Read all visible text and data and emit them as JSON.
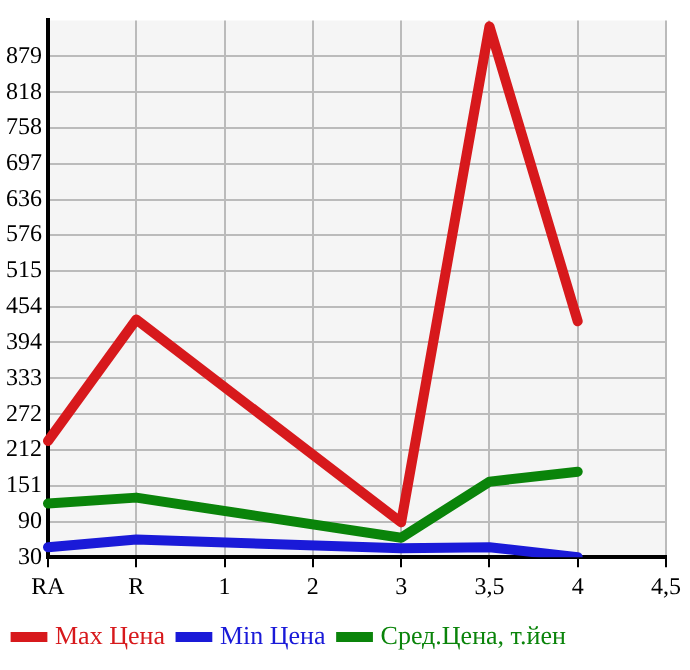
{
  "chart_data": {
    "type": "line",
    "categories": [
      "RA",
      "R",
      "1",
      "2",
      "3",
      "3,5",
      "4",
      "4,5"
    ],
    "series": [
      {
        "name": "Max Цена",
        "color": "#d7191c",
        "values": [
          227,
          433,
          null,
          null,
          89,
          930,
          430,
          null
        ]
      },
      {
        "name": "Min Цена",
        "color": "#1a1ad8",
        "values": [
          47,
          60,
          null,
          null,
          45,
          47,
          30,
          null
        ]
      },
      {
        "name": "Сред.Цена, т.йен",
        "color": "#0a840a",
        "values": [
          121,
          131,
          null,
          null,
          63,
          158,
          175,
          null
        ]
      }
    ],
    "ylim": [
      30,
      940
    ],
    "yticks": [
      30,
      90,
      151,
      212,
      272,
      333,
      394,
      454,
      515,
      576,
      636,
      697,
      758,
      818,
      879
    ],
    "grid": true,
    "legend": "bottom",
    "marker": "none",
    "line_style": "solid"
  }
}
